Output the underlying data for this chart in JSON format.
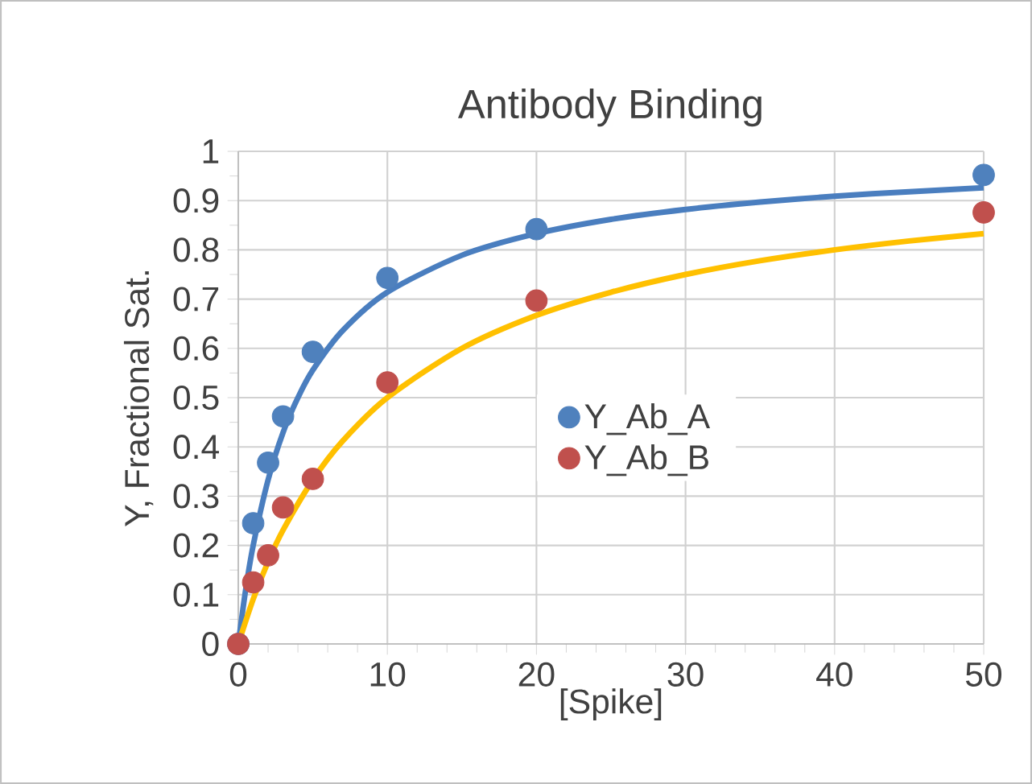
{
  "chart_data": {
    "type": "scatter",
    "title": "Antibody Binding",
    "xlabel": "[Spike]",
    "ylabel": "Y, Fractional Sat.",
    "xlim": [
      0,
      50
    ],
    "ylim": [
      0,
      1
    ],
    "xticks": [
      0,
      10,
      20,
      30,
      40,
      50
    ],
    "yticks": [
      0,
      0.1,
      0.2,
      0.3,
      0.4,
      0.5,
      0.6,
      0.7,
      0.8,
      0.9,
      1
    ],
    "grid": true,
    "legend": "right",
    "series": [
      {
        "type": "line",
        "color": "#4a7ebf",
        "marker": "none",
        "x": [
          0,
          0.5,
          1,
          2,
          3,
          4,
          5,
          7,
          10,
          15,
          20,
          25,
          30,
          35,
          40,
          45,
          50
        ],
        "values": [
          0,
          0.111,
          0.2,
          0.333,
          0.429,
          0.5,
          0.556,
          0.636,
          0.714,
          0.789,
          0.833,
          0.862,
          0.882,
          0.897,
          0.909,
          0.918,
          0.926
        ]
      },
      {
        "type": "line",
        "color": "#ffc000",
        "marker": "none",
        "x": [
          0,
          1,
          2,
          3,
          5,
          7,
          10,
          15,
          20,
          25,
          30,
          35,
          40,
          45,
          50
        ],
        "values": [
          0,
          0.091,
          0.167,
          0.231,
          0.333,
          0.412,
          0.5,
          0.6,
          0.667,
          0.714,
          0.75,
          0.778,
          0.8,
          0.818,
          0.833
        ]
      },
      {
        "type": "scatter",
        "marker": "circle",
        "name": "Y_Ab_A",
        "color": "#4f81bd",
        "x": [
          0,
          1,
          2,
          3,
          5,
          10,
          20,
          50
        ],
        "values": [
          0,
          0.245,
          0.368,
          0.462,
          0.593,
          0.743,
          0.842,
          0.952
        ]
      },
      {
        "type": "scatter",
        "marker": "circle",
        "name": "Y_Ab_B",
        "color": "#c0504d",
        "x": [
          0,
          1,
          2,
          3,
          5,
          10,
          20,
          50
        ],
        "values": [
          0,
          0.125,
          0.18,
          0.277,
          0.335,
          0.531,
          0.697,
          0.876
        ]
      }
    ]
  }
}
